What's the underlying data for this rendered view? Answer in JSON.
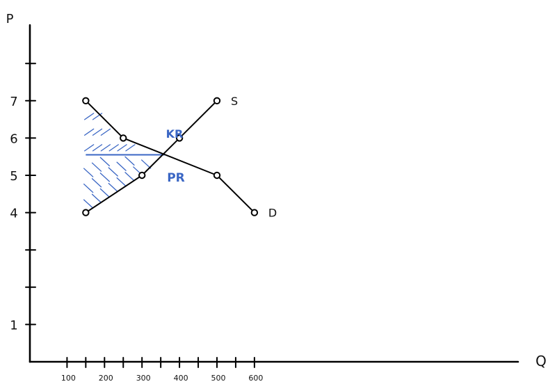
{
  "chart_data": {
    "type": "line",
    "title": "",
    "xlabel": "Q",
    "ylabel": "P",
    "x_ticks": [
      "100",
      "200",
      "300",
      "400",
      "500",
      "600"
    ],
    "x_tick_values": [
      100,
      200,
      300,
      400,
      500,
      600
    ],
    "y_ticks": [
      "1",
      "4",
      "5",
      "6",
      "7"
    ],
    "y_tick_values": [
      1,
      4,
      5,
      6,
      7
    ],
    "xlim": [
      -100,
      650
    ],
    "ylim": [
      0,
      9
    ],
    "series": [
      {
        "name": "S",
        "points": [
          [
            150,
            4
          ],
          [
            300,
            5
          ],
          [
            400,
            6
          ],
          [
            500,
            7
          ]
        ]
      },
      {
        "name": "D",
        "points": [
          [
            150,
            7
          ],
          [
            250,
            6
          ],
          [
            500,
            5
          ],
          [
            600,
            4
          ]
        ]
      }
    ],
    "equilibrium_price": 5.55,
    "equilibrium_quantity": 360,
    "regions": [
      {
        "label": "KR",
        "color": "#3a66c4"
      },
      {
        "label": "PR",
        "color": "#3a66c4"
      }
    ],
    "grid": false,
    "legend": "none"
  }
}
